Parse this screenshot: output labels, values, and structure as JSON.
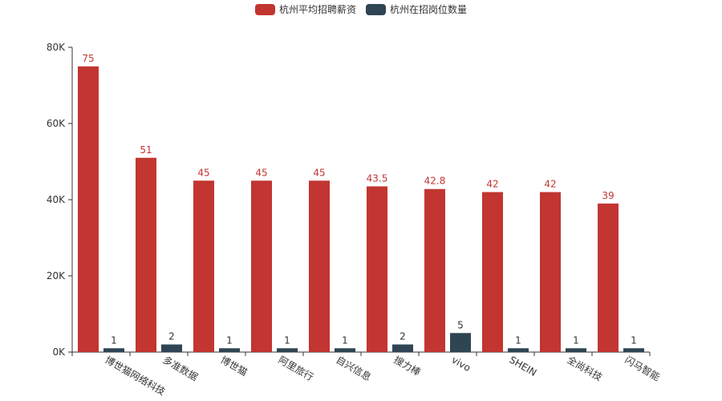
{
  "chart_data": {
    "type": "bar",
    "categories": [
      "博世猫网络科技",
      "多准数据",
      "博世猫",
      "阿里旅行",
      "自兴信息",
      "搜力棒",
      "vivo",
      "SHEIN",
      "全尚科技",
      "闪马智能"
    ],
    "series": [
      {
        "name": "杭州平均招聘薪资",
        "color": "#c23531",
        "values": [
          75000,
          51000,
          45000,
          45000,
          45000,
          43500,
          42800,
          42000,
          42000,
          39000
        ],
        "labels": [
          "75",
          "51",
          "45",
          "45",
          "45",
          "43.5",
          "42.8",
          "42",
          "42",
          "39"
        ]
      },
      {
        "name": "杭州在招岗位数量",
        "color": "#2f4554",
        "values": [
          1000,
          2000,
          1000,
          1000,
          1000,
          2000,
          5000,
          1000,
          1000,
          1000
        ],
        "labels": [
          "1",
          "2",
          "1",
          "1",
          "1",
          "2",
          "5",
          "1",
          "1",
          "1"
        ]
      }
    ],
    "ylim": [
      0,
      80000
    ],
    "yticks": [
      0,
      20000,
      40000,
      60000,
      80000
    ],
    "ytick_labels": [
      "0K",
      "20K",
      "40K",
      "60K",
      "80K"
    ],
    "legend_position": "top-center",
    "grid": false
  }
}
